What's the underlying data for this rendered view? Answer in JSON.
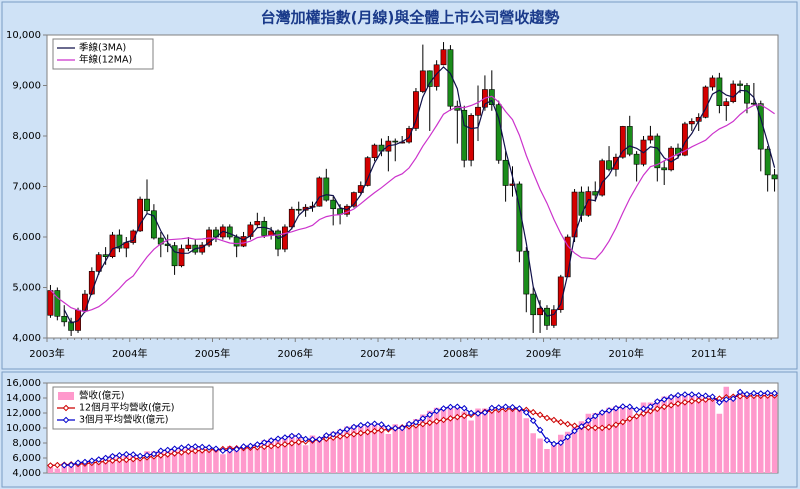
{
  "chart_data": [
    {
      "type": "candlestick",
      "title": "台灣加權指數(月線)與全體上市公司營收趨勢",
      "categories": [
        "2003年",
        null,
        null,
        null,
        null,
        null,
        null,
        null,
        null,
        null,
        null,
        null,
        "2004年",
        null,
        null,
        null,
        null,
        null,
        null,
        null,
        null,
        null,
        null,
        null,
        "2005年",
        null,
        null,
        null,
        null,
        null,
        null,
        null,
        null,
        null,
        null,
        null,
        "2006年",
        null,
        null,
        null,
        null,
        null,
        null,
        null,
        null,
        null,
        null,
        null,
        "2007年",
        null,
        null,
        null,
        null,
        null,
        null,
        null,
        null,
        null,
        null,
        null,
        "2008年",
        null,
        null,
        null,
        null,
        null,
        null,
        null,
        null,
        null,
        null,
        null,
        "2009年",
        null,
        null,
        null,
        null,
        null,
        null,
        null,
        null,
        null,
        null,
        null,
        "2010年",
        null,
        null,
        null,
        null,
        null,
        null,
        null,
        null,
        null,
        null,
        null,
        "2011年",
        null,
        null,
        null,
        null,
        null,
        null,
        null,
        null,
        null
      ],
      "open": [
        4450,
        4940,
        4430,
        4320,
        4150,
        4550,
        4870,
        5320,
        5650,
        5610,
        6040,
        5780,
        5890,
        6120,
        6750,
        6520,
        5980,
        5860,
        5830,
        5430,
        5770,
        5840,
        5700,
        5840,
        6140,
        6000,
        6200,
        6000,
        5820,
        6010,
        6240,
        6310,
        6030,
        6120,
        5760,
        6200,
        6550,
        6530,
        6590,
        6610,
        7170,
        6730,
        6560,
        6450,
        6610,
        6880,
        7020,
        7570,
        7820,
        7700,
        7900,
        7870,
        7880,
        8150,
        8880,
        9290,
        8980,
        9410,
        9710,
        8590,
        8510,
        7520,
        8410,
        8570,
        8920,
        8620,
        7520,
        7020,
        7050,
        5720,
        4870,
        4460,
        4590,
        4250,
        4560,
        5210,
        6000,
        6890,
        6430,
        6900,
        6830,
        7510,
        7340,
        7580,
        8190,
        7640,
        7440,
        7920,
        8000,
        7370,
        7330,
        7760,
        7620,
        8240,
        8290,
        8370,
        8970,
        9150,
        8600,
        8680,
        9030,
        9000,
        8650,
        8640,
        7740,
        7230
      ],
      "high": [
        5050,
        5000,
        4650,
        4400,
        4600,
        4950,
        5400,
        5700,
        5800,
        6100,
        6150,
        6000,
        6150,
        6800,
        7140,
        6650,
        6100,
        6050,
        5900,
        5850,
        6000,
        5950,
        5900,
        6200,
        6200,
        6250,
        6250,
        6050,
        6100,
        6300,
        6480,
        6400,
        6200,
        6150,
        6250,
        6600,
        6700,
        6650,
        6700,
        7200,
        7350,
        6800,
        6650,
        6650,
        6900,
        7100,
        7600,
        7850,
        7950,
        8000,
        7950,
        8000,
        8200,
        8950,
        9810,
        9300,
        9500,
        9860,
        9800,
        8700,
        8600,
        8450,
        9000,
        9200,
        9300,
        8700,
        7700,
        7400,
        7100,
        5800,
        5000,
        4750,
        4650,
        4650,
        5250,
        6050,
        6950,
        7000,
        7000,
        7100,
        7550,
        7800,
        7650,
        8200,
        8400,
        7700,
        8000,
        8200,
        8050,
        7500,
        7800,
        7850,
        8280,
        8350,
        8450,
        9000,
        9200,
        9250,
        8750,
        9100,
        9100,
        9050,
        9050,
        8700,
        7800,
        7350
      ],
      "low": [
        4400,
        4350,
        4230,
        4040,
        4100,
        4500,
        4850,
        5250,
        5450,
        5580,
        5700,
        5600,
        5850,
        6100,
        6450,
        5950,
        5600,
        5700,
        5250,
        5400,
        5720,
        5650,
        5650,
        5800,
        5900,
        5950,
        5950,
        5600,
        5800,
        5950,
        6200,
        5980,
        5950,
        5620,
        5700,
        6150,
        6450,
        6400,
        6500,
        6600,
        6700,
        6230,
        6250,
        6400,
        6580,
        6850,
        7000,
        7500,
        7600,
        7300,
        7500,
        7850,
        7850,
        8100,
        8850,
        8100,
        8900,
        9400,
        8500,
        7850,
        7380,
        7400,
        7900,
        8500,
        8500,
        7450,
        6700,
        6800,
        5500,
        4510,
        4100,
        4100,
        4160,
        4200,
        4500,
        5200,
        5900,
        6300,
        6400,
        6700,
        6800,
        7300,
        7200,
        7550,
        7600,
        7100,
        7400,
        7850,
        7100,
        7030,
        7300,
        7550,
        7600,
        8100,
        8100,
        8350,
        8900,
        8450,
        8300,
        8650,
        8850,
        8450,
        8600,
        7300,
        6900,
        6900
      ],
      "close": [
        4940,
        4430,
        4320,
        4150,
        4550,
        4870,
        5320,
        5650,
        5610,
        6040,
        5780,
        5890,
        6120,
        6750,
        6520,
        5980,
        5860,
        5830,
        5430,
        5770,
        5840,
        5700,
        5840,
        6140,
        6000,
        6200,
        6000,
        5820,
        6010,
        6240,
        6310,
        6030,
        6120,
        5760,
        6200,
        6550,
        6530,
        6590,
        6610,
        7170,
        6730,
        6560,
        6450,
        6610,
        6880,
        7020,
        7570,
        7820,
        7700,
        7900,
        7880,
        7880,
        8150,
        8880,
        9290,
        8980,
        9410,
        9710,
        8590,
        8510,
        7520,
        8410,
        8570,
        8920,
        8620,
        7520,
        7020,
        7050,
        5720,
        4870,
        4460,
        4590,
        4250,
        4560,
        5210,
        6000,
        6890,
        6430,
        6900,
        6830,
        7510,
        7340,
        7580,
        8190,
        7640,
        7440,
        7920,
        8000,
        7370,
        7330,
        7760,
        7620,
        8240,
        8290,
        8370,
        8970,
        9150,
        8600,
        8680,
        9030,
        9000,
        8650,
        8640,
        7740,
        7230,
        7150
      ],
      "up_color": "#d40000",
      "down_color": "#1a8c1a",
      "series": [
        {
          "name": "季線(3MA)",
          "color": "#10104a",
          "values": [
            null,
            null,
            4563,
            4300,
            4340,
            4523,
            4913,
            5280,
            5527,
            5767,
            5810,
            5903,
            5930,
            6253,
            6463,
            6417,
            6120,
            5890,
            5707,
            5677,
            5680,
            5770,
            5793,
            5893,
            5993,
            6113,
            6067,
            6007,
            5943,
            6023,
            6187,
            6193,
            6153,
            5970,
            6027,
            6170,
            6427,
            6557,
            6577,
            6790,
            6837,
            6820,
            6580,
            6540,
            6647,
            6837,
            7157,
            7470,
            7697,
            7807,
            7827,
            7887,
            7970,
            8303,
            8773,
            9050,
            9227,
            9367,
            9237,
            8937,
            8207,
            8147,
            8167,
            8633,
            8703,
            8353,
            7720,
            7197,
            6597,
            5880,
            5017,
            4640,
            4433,
            4467,
            4673,
            5257,
            6033,
            6440,
            6740,
            6720,
            7080,
            7227,
            7477,
            7703,
            7803,
            7757,
            7667,
            7787,
            7763,
            7567,
            7487,
            7570,
            7873,
            8050,
            8300,
            8543,
            8830,
            8907,
            8810,
            8770,
            8903,
            8893,
            8763,
            8343,
            7870,
            7373
          ]
        },
        {
          "name": "年線(12MA)",
          "color": "#cc33cc",
          "values": [
            4950,
            4800,
            4700,
            4600,
            4550,
            4520,
            4560,
            4620,
            4720,
            4850,
            4980,
            5129,
            5227,
            5420,
            5603,
            5756,
            5865,
            5945,
            5954,
            5964,
            5983,
            5955,
            5960,
            5981,
            5971,
            5925,
            5882,
            5869,
            5882,
            5916,
            5989,
            6011,
            6034,
            6039,
            6069,
            6103,
            6147,
            6180,
            6231,
            6344,
            6404,
            6431,
            6443,
            6491,
            6554,
            6659,
            6773,
            6879,
            6977,
            7086,
            7192,
            7251,
            7369,
            7562,
            7799,
            7997,
            8208,
            8432,
            8517,
            8575,
            8560,
            8603,
            8661,
            8748,
            8787,
            8674,
            8485,
            8324,
            8016,
            7613,
            7269,
            6942,
            6669,
            6348,
            6068,
            5825,
            5681,
            5590,
            5580,
            5562,
            5711,
            5917,
            6177,
            6477,
            6760,
            7000,
            7226,
            7393,
            7433,
            7508,
            7580,
            7646,
            7707,
            7786,
            7852,
            7917,
            8043,
            8140,
            8203,
            8289,
            8425,
            8535,
            8608,
            8618,
            8534,
            8439
          ]
        }
      ],
      "ylim": [
        4000,
        10000
      ],
      "yticks": [
        {
          "value": 4000,
          "label": "4,000"
        },
        {
          "value": 5000,
          "label": "5,000"
        },
        {
          "value": 6000,
          "label": "6,000"
        },
        {
          "value": 7000,
          "label": "7,000"
        },
        {
          "value": 8000,
          "label": "8,000"
        },
        {
          "value": 9000,
          "label": "9,000"
        },
        {
          "value": 10000,
          "label": "10,000"
        }
      ],
      "legend": "upper-left"
    },
    {
      "type": "bar",
      "series": [
        {
          "name": "營收(億元)",
          "kind": "bar",
          "color": "#ff99cc",
          "values": [
            5200,
            4600,
            5300,
            5300,
            5500,
            5600,
            5800,
            6000,
            6200,
            6500,
            6400,
            6600,
            6400,
            5800,
            6900,
            6900,
            7100,
            7200,
            7400,
            7500,
            7600,
            7500,
            7300,
            7400,
            7000,
            6500,
            7600,
            7400,
            7600,
            7800,
            8000,
            8400,
            8600,
            8700,
            8900,
            9200,
            8700,
            7700,
            9000,
            8800,
            9200,
            9500,
            9800,
            10200,
            10400,
            10500,
            10500,
            10700,
            10200,
            9200,
            10500,
            10300,
            10800,
            11200,
            11800,
            12300,
            12700,
            12800,
            12900,
            12800,
            12200,
            11000,
            12600,
            12600,
            12800,
            12800,
            12900,
            12600,
            12300,
            11300,
            9300,
            8600,
            7200,
            7800,
            9100,
            9500,
            10200,
            10900,
            11900,
            12000,
            12300,
            12700,
            12900,
            13000,
            12600,
            11700,
            13400,
            13400,
            13800,
            14200,
            14400,
            14500,
            14500,
            14400,
            14200,
            14300,
            14000,
            11900,
            15500,
            14300,
            14600,
            14600,
            14700,
            14500,
            14800,
            14600
          ]
        },
        {
          "name": "12個月平均營收(億元)",
          "kind": "line",
          "color": "#cc0000",
          "values": [
            5000,
            5050,
            5100,
            5150,
            5200,
            5250,
            5350,
            5450,
            5550,
            5650,
            5750,
            5750,
            5850,
            5950,
            6083,
            6216,
            6349,
            6482,
            6615,
            6740,
            6857,
            6940,
            7015,
            7082,
            7132,
            7190,
            7248,
            7290,
            7332,
            7382,
            7432,
            7507,
            7590,
            7690,
            7823,
            7973,
            8115,
            8215,
            8332,
            8449,
            8582,
            8724,
            8874,
            9024,
            9174,
            9324,
            9457,
            9582,
            9707,
            9832,
            9957,
            10082,
            10215,
            10357,
            10524,
            10699,
            10891,
            11083,
            11283,
            11458,
            11625,
            11775,
            11950,
            12142,
            12309,
            12442,
            12534,
            12559,
            12526,
            12401,
            12101,
            11751,
            11334,
            11067,
            10775,
            10517,
            10300,
            10142,
            10059,
            10009,
            10009,
            10126,
            10426,
            10793,
            11243,
            11568,
            11926,
            12251,
            12551,
            12826,
            13034,
            13242,
            13425,
            13567,
            13675,
            13783,
            13900,
            13917,
            14092,
            14167,
            14234,
            14267,
            14292,
            14292,
            14317,
            14334
          ]
        },
        {
          "name": "3個月平均營收(億元)",
          "kind": "line",
          "color": "#0000cc",
          "values": [
            null,
            null,
            5033,
            5067,
            5367,
            5467,
            5633,
            5800,
            6000,
            6233,
            6367,
            6500,
            6467,
            6267,
            6367,
            6533,
            6967,
            7067,
            7233,
            7367,
            7500,
            7533,
            7467,
            7400,
            7233,
            6967,
            7033,
            7167,
            7533,
            7600,
            7800,
            8067,
            8333,
            8567,
            8733,
            8933,
            8933,
            8533,
            8467,
            8500,
            9000,
            9167,
            9500,
            9833,
            10133,
            10367,
            10467,
            10567,
            10467,
            10033,
            9967,
            10000,
            10533,
            10767,
            11267,
            11767,
            12267,
            12600,
            12800,
            12833,
            12633,
            12000,
            11933,
            12067,
            12667,
            12733,
            12833,
            12767,
            12600,
            12067,
            10967,
            9733,
            8367,
            7867,
            8033,
            8800,
            9600,
            10200,
            11000,
            11600,
            12067,
            12333,
            12633,
            12867,
            12833,
            12433,
            12567,
            12833,
            13533,
            13800,
            14133,
            14367,
            14467,
            14467,
            14367,
            14300,
            14167,
            13400,
            13800,
            13900,
            14800,
            14500,
            14633,
            14600,
            14667,
            14633
          ]
        }
      ],
      "ylim": [
        4000,
        16000
      ],
      "yticks": [
        {
          "value": 4000,
          "label": "4,000"
        },
        {
          "value": 6000,
          "label": "6,000"
        },
        {
          "value": 8000,
          "label": "8,000"
        },
        {
          "value": 10000,
          "label": "10,000"
        },
        {
          "value": 12000,
          "label": "12,000"
        },
        {
          "value": 14000,
          "label": "14,000"
        },
        {
          "value": 16000,
          "label": "16,000"
        }
      ],
      "legend": "upper-left"
    }
  ]
}
